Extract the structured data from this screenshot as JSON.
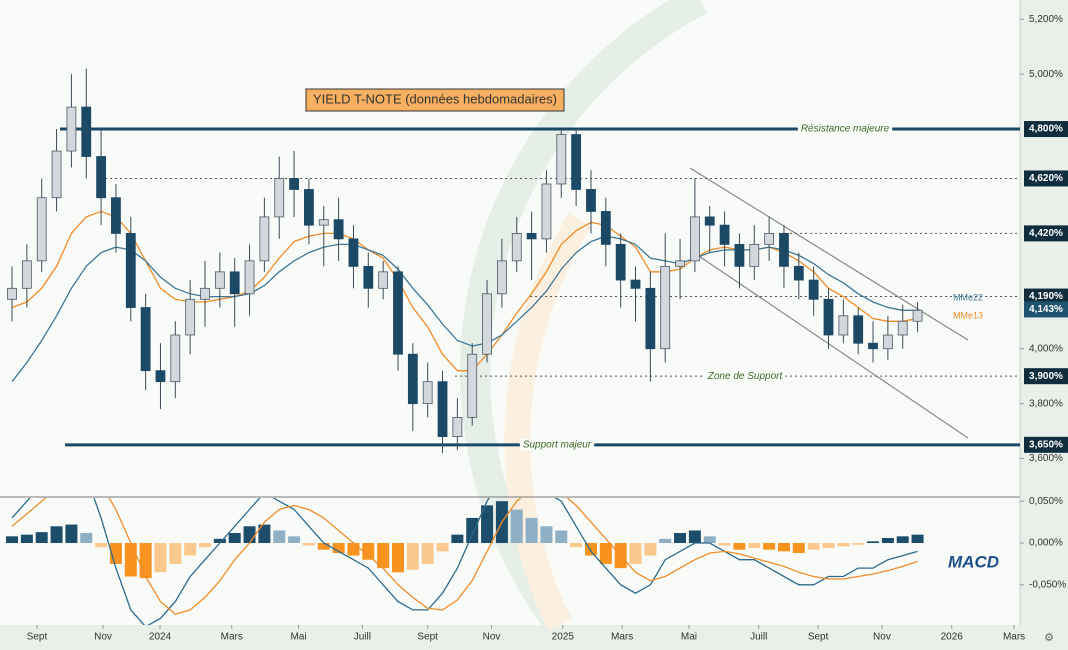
{
  "chart_data": {
    "type": "candlestick",
    "title": "YIELD T-NOTE (données hebdomadaires)",
    "xlim": [
      -0.81,
      67.9
    ],
    "xticks": [
      {
        "value": 1.68,
        "label": "Sept"
      },
      {
        "value": 6.13,
        "label": "Nov"
      },
      {
        "value": 9.97,
        "label": "2024"
      },
      {
        "value": 14.8,
        "label": "Mars"
      },
      {
        "value": 19.3,
        "label": "Mai"
      },
      {
        "value": 23.6,
        "label": "Juill"
      },
      {
        "value": 28.0,
        "label": "Sept"
      },
      {
        "value": 32.3,
        "label": "Nov"
      },
      {
        "value": 37.1,
        "label": "2025"
      },
      {
        "value": 41.1,
        "label": "Mars"
      },
      {
        "value": 45.6,
        "label": "Mai"
      },
      {
        "value": 50.3,
        "label": "Juill"
      },
      {
        "value": 54.3,
        "label": "Sept"
      },
      {
        "value": 58.6,
        "label": "Nov"
      },
      {
        "value": 63.3,
        "label": "2026"
      },
      {
        "value": 67.5,
        "label": "Mars"
      }
    ],
    "ylim": [
      3.46,
      5.27
    ],
    "yticks": [
      {
        "value": 5.2,
        "label": "5,200%"
      },
      {
        "value": 5.0,
        "label": "5,000%"
      },
      {
        "value": 4.0,
        "label": "4,000%"
      },
      {
        "value": 3.8,
        "label": "3,800%"
      },
      {
        "value": 3.6,
        "label": "3,600%"
      }
    ],
    "levels": [
      {
        "value": 4.8,
        "label": "4,800%",
        "text": "Résistance majeure",
        "style": "solid"
      },
      {
        "value": 4.62,
        "label": "4,620%",
        "style": "dotted"
      },
      {
        "value": 4.42,
        "label": "4,420%",
        "style": "dotted"
      },
      {
        "value": 4.19,
        "label": "4,190%",
        "style": "dotted"
      },
      {
        "value": 3.9,
        "label": "3,900%",
        "text": "Zone de Support",
        "style": "dotted"
      },
      {
        "value": 3.65,
        "label": "3,650%",
        "text": "Support majeur",
        "style": "solid"
      }
    ],
    "last": {
      "value": 4.143,
      "label": "4,143%",
      "color": "#1f5470"
    },
    "candles": {
      "up_color": "#d3d8dc",
      "down_color": "#1b4966",
      "open": [
        4.18,
        4.22,
        4.32,
        4.55,
        4.72,
        4.88,
        4.7,
        4.55,
        4.42,
        4.15,
        3.92,
        3.88,
        4.05,
        4.18,
        4.22,
        4.28,
        4.2,
        4.32,
        4.48,
        4.62,
        4.58,
        4.45,
        4.47,
        4.4,
        4.3,
        4.22,
        4.28,
        3.98,
        3.8,
        3.88,
        3.68,
        3.75,
        3.98,
        4.2,
        4.32,
        4.42,
        4.4,
        4.6,
        4.78,
        4.58,
        4.5,
        4.38,
        4.25,
        4.22,
        4.0,
        4.3,
        4.32,
        4.48,
        4.45,
        4.38,
        4.3,
        4.38,
        4.42,
        4.3,
        4.25,
        4.18,
        4.05,
        4.12,
        4.02,
        4.0,
        4.05,
        4.1
      ],
      "high": [
        4.3,
        4.38,
        4.62,
        4.8,
        5.0,
        5.02,
        4.8,
        4.6,
        4.48,
        4.2,
        4.02,
        4.1,
        4.25,
        4.32,
        4.35,
        4.33,
        4.38,
        4.55,
        4.7,
        4.72,
        4.62,
        4.52,
        4.55,
        4.45,
        4.35,
        4.32,
        4.3,
        4.02,
        3.95,
        3.92,
        3.82,
        4.02,
        4.25,
        4.4,
        4.48,
        4.5,
        4.65,
        4.8,
        4.8,
        4.65,
        4.55,
        4.42,
        4.3,
        4.28,
        4.42,
        4.4,
        4.62,
        4.52,
        4.5,
        4.42,
        4.45,
        4.48,
        4.45,
        4.35,
        4.3,
        4.22,
        4.18,
        4.15,
        4.1,
        4.12,
        4.16,
        4.17
      ],
      "low": [
        4.1,
        4.15,
        4.28,
        4.5,
        4.66,
        4.62,
        4.45,
        4.35,
        4.1,
        3.85,
        3.78,
        3.82,
        3.98,
        4.08,
        4.15,
        4.08,
        4.12,
        4.28,
        4.4,
        4.48,
        4.38,
        4.3,
        4.32,
        4.22,
        4.15,
        4.18,
        3.92,
        3.7,
        3.75,
        3.62,
        3.63,
        3.72,
        3.95,
        4.15,
        4.28,
        4.25,
        4.35,
        4.55,
        4.52,
        4.42,
        4.3,
        4.15,
        4.1,
        3.88,
        3.95,
        4.18,
        4.28,
        4.35,
        4.3,
        4.22,
        4.25,
        4.32,
        4.22,
        4.18,
        4.12,
        4.0,
        4.02,
        3.98,
        3.95,
        3.96,
        4.0,
        4.06
      ],
      "close": [
        4.22,
        4.32,
        4.55,
        4.72,
        4.88,
        4.7,
        4.55,
        4.42,
        4.15,
        3.92,
        3.88,
        4.05,
        4.18,
        4.22,
        4.28,
        4.2,
        4.32,
        4.48,
        4.62,
        4.58,
        4.45,
        4.47,
        4.4,
        4.3,
        4.22,
        4.28,
        3.98,
        3.8,
        3.88,
        3.68,
        3.75,
        3.98,
        4.2,
        4.32,
        4.42,
        4.4,
        4.6,
        4.78,
        4.58,
        4.5,
        4.38,
        4.25,
        4.22,
        4.0,
        4.3,
        4.32,
        4.48,
        4.45,
        4.38,
        4.3,
        4.38,
        4.42,
        4.3,
        4.25,
        4.18,
        4.05,
        4.12,
        4.02,
        4.0,
        4.05,
        4.1,
        4.14
      ]
    },
    "series": [
      {
        "name": "MMe13",
        "color": "#f08c2a",
        "values": [
          4.15,
          4.17,
          4.22,
          4.3,
          4.42,
          4.48,
          4.5,
          4.48,
          4.42,
          4.32,
          4.22,
          4.18,
          4.17,
          4.17,
          4.18,
          4.19,
          4.21,
          4.26,
          4.33,
          4.39,
          4.41,
          4.42,
          4.42,
          4.4,
          4.36,
          4.33,
          4.25,
          4.15,
          4.08,
          3.98,
          3.92,
          3.92,
          3.98,
          4.05,
          4.13,
          4.2,
          4.28,
          4.38,
          4.43,
          4.46,
          4.45,
          4.41,
          4.37,
          4.28,
          4.28,
          4.29,
          4.33,
          4.36,
          4.37,
          4.36,
          4.36,
          4.37,
          4.35,
          4.32,
          4.28,
          4.22,
          4.19,
          4.15,
          4.11,
          4.1,
          4.1,
          4.11
        ]
      },
      {
        "name": "MMe22",
        "color": "#3f7895",
        "values": [
          3.88,
          3.95,
          4.03,
          4.12,
          4.22,
          4.3,
          4.35,
          4.37,
          4.36,
          4.32,
          4.26,
          4.22,
          4.2,
          4.19,
          4.19,
          4.19,
          4.2,
          4.23,
          4.28,
          4.32,
          4.35,
          4.37,
          4.38,
          4.38,
          4.36,
          4.34,
          4.29,
          4.22,
          4.16,
          4.09,
          4.03,
          4.01,
          4.02,
          4.05,
          4.1,
          4.15,
          4.21,
          4.29,
          4.35,
          4.39,
          4.41,
          4.4,
          4.38,
          4.33,
          4.32,
          4.31,
          4.33,
          4.35,
          4.36,
          4.36,
          4.36,
          4.37,
          4.36,
          4.34,
          4.31,
          4.27,
          4.24,
          4.2,
          4.17,
          4.15,
          4.14,
          4.14
        ]
      }
    ],
    "macd": {
      "title": "MACD",
      "ylim": [
        -0.098,
        0.055
      ],
      "yticks": [
        {
          "value": 0.05,
          "label": "0,050%"
        },
        {
          "value": 0,
          "label": "0,000%"
        },
        {
          "value": -0.05,
          "label": "-0,050%"
        }
      ],
      "histogram": [
        0.008,
        0.01,
        0.013,
        0.02,
        0.022,
        0.012,
        -0.005,
        -0.025,
        -0.04,
        -0.042,
        -0.035,
        -0.025,
        -0.015,
        -0.005,
        0.005,
        0.012,
        0.02,
        0.022,
        0.015,
        0.008,
        -0.003,
        -0.008,
        -0.012,
        -0.015,
        -0.02,
        -0.03,
        -0.035,
        -0.032,
        -0.025,
        -0.01,
        0.01,
        0.03,
        0.045,
        0.05,
        0.04,
        0.03,
        0.02,
        0.015,
        -0.005,
        -0.015,
        -0.025,
        -0.03,
        -0.025,
        -0.015,
        0.005,
        0.012,
        0.015,
        0.008,
        -0.003,
        -0.008,
        -0.006,
        -0.008,
        -0.01,
        -0.012,
        -0.008,
        -0.006,
        -0.004,
        -0.002,
        0.002,
        0.006,
        0.008,
        0.01
      ],
      "colors": {
        "pos": "#1c4e6b",
        "pos_fading": "#8fb0c4",
        "neg": "#f7931e",
        "neg_fading": "#fbc98e"
      },
      "lines": [
        {
          "color": "#2d6a8a",
          "values": [
            0.03,
            0.05,
            0.07,
            0.09,
            0.1,
            0.08,
            0.03,
            -0.03,
            -0.08,
            -0.1,
            -0.09,
            -0.07,
            -0.04,
            -0.02,
            0.0,
            0.02,
            0.04,
            0.06,
            0.05,
            0.04,
            0.02,
            0.0,
            -0.01,
            -0.02,
            -0.03,
            -0.05,
            -0.07,
            -0.08,
            -0.08,
            -0.06,
            -0.03,
            0.01,
            0.05,
            0.08,
            0.08,
            0.07,
            0.06,
            0.05,
            0.02,
            -0.01,
            -0.03,
            -0.05,
            -0.06,
            -0.05,
            -0.02,
            -0.01,
            0.0,
            0.0,
            -0.01,
            -0.02,
            -0.02,
            -0.03,
            -0.04,
            -0.05,
            -0.05,
            -0.04,
            -0.04,
            -0.03,
            -0.03,
            -0.02,
            -0.015,
            -0.01
          ]
        },
        {
          "color": "#f08c2a",
          "values": [
            0.02,
            0.035,
            0.05,
            0.065,
            0.08,
            0.085,
            0.07,
            0.04,
            0.0,
            -0.04,
            -0.07,
            -0.085,
            -0.08,
            -0.065,
            -0.045,
            -0.02,
            0.0,
            0.025,
            0.04,
            0.045,
            0.04,
            0.03,
            0.015,
            0.0,
            -0.015,
            -0.03,
            -0.05,
            -0.065,
            -0.078,
            -0.08,
            -0.068,
            -0.045,
            -0.01,
            0.025,
            0.05,
            0.065,
            0.065,
            0.06,
            0.045,
            0.025,
            0.005,
            -0.015,
            -0.035,
            -0.045,
            -0.04,
            -0.03,
            -0.02,
            -0.012,
            -0.01,
            -0.013,
            -0.018,
            -0.023,
            -0.028,
            -0.035,
            -0.04,
            -0.043,
            -0.043,
            -0.04,
            -0.037,
            -0.033,
            -0.028,
            -0.022
          ]
        }
      ]
    }
  }
}
